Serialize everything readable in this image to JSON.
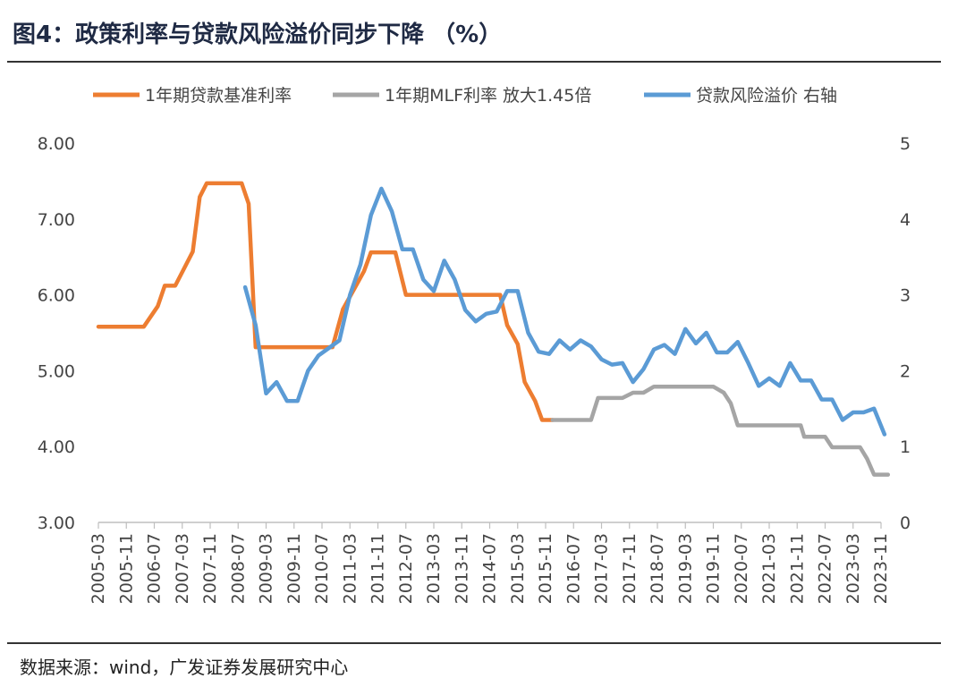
{
  "header": {
    "title": "图4：政策利率与贷款风险溢价同步下降 （%）"
  },
  "footer": {
    "source": "数据来源：wind，广发证券发展研究中心"
  },
  "chart_data": {
    "type": "line",
    "title": "图4：政策利率与贷款风险溢价同步下降 （%）",
    "xlabel": "",
    "ylabel": "",
    "x_tick_labels": [
      "2005-03",
      "2005-11",
      "2006-07",
      "2007-03",
      "2007-11",
      "2008-07",
      "2009-03",
      "2009-11",
      "2010-07",
      "2011-03",
      "2011-11",
      "2012-07",
      "2013-03",
      "2013-11",
      "2014-07",
      "2015-03",
      "2015-11",
      "2016-07",
      "2017-03",
      "2017-11",
      "2018-07",
      "2019-03",
      "2019-11",
      "2020-07",
      "2021-03",
      "2021-11",
      "2022-07",
      "2023-03",
      "2023-11"
    ],
    "y_left": {
      "ticks": [
        "3.00",
        "4.00",
        "5.00",
        "6.00",
        "7.00",
        "8.00"
      ],
      "ylim": [
        3,
        8
      ]
    },
    "y_right": {
      "ticks": [
        "0",
        "1",
        "2",
        "3",
        "4",
        "5"
      ],
      "ylim": [
        0,
        5
      ]
    },
    "legend_position": "top",
    "grid": false,
    "series": [
      {
        "name": "1年期贷款基准利率",
        "axis": "left",
        "color": "#ED7D31",
        "points": [
          [
            "2005-03",
            5.58
          ],
          [
            "2006-04",
            5.58
          ],
          [
            "2006-08",
            5.85
          ],
          [
            "2006-10",
            6.12
          ],
          [
            "2007-01",
            6.12
          ],
          [
            "2007-04",
            6.39
          ],
          [
            "2007-06",
            6.57
          ],
          [
            "2007-08",
            7.29
          ],
          [
            "2007-10",
            7.47
          ],
          [
            "2008-08",
            7.47
          ],
          [
            "2008-10",
            7.2
          ],
          [
            "2008-12",
            5.31
          ],
          [
            "2010-10",
            5.31
          ],
          [
            "2011-01",
            5.81
          ],
          [
            "2011-04",
            6.06
          ],
          [
            "2011-07",
            6.31
          ],
          [
            "2011-09",
            6.56
          ],
          [
            "2012-04",
            6.56
          ],
          [
            "2012-07",
            6.0
          ],
          [
            "2014-10",
            6.0
          ],
          [
            "2014-12",
            5.6
          ],
          [
            "2015-03",
            5.35
          ],
          [
            "2015-05",
            4.85
          ],
          [
            "2015-08",
            4.6
          ],
          [
            "2015-10",
            4.35
          ],
          [
            "2016-01",
            4.35
          ]
        ]
      },
      {
        "name": "1年期MLF利率 放大1.45倍",
        "axis": "left",
        "color": "#A5A5A5",
        "points": [
          [
            "2016-01",
            4.35
          ],
          [
            "2016-12",
            4.35
          ],
          [
            "2017-02",
            4.64
          ],
          [
            "2017-09",
            4.64
          ],
          [
            "2017-12",
            4.71
          ],
          [
            "2018-03",
            4.71
          ],
          [
            "2018-06",
            4.79
          ],
          [
            "2019-11",
            4.79
          ],
          [
            "2020-02",
            4.71
          ],
          [
            "2020-04",
            4.57
          ],
          [
            "2020-06",
            4.28
          ],
          [
            "2021-12",
            4.28
          ],
          [
            "2022-01",
            4.13
          ],
          [
            "2022-07",
            4.13
          ],
          [
            "2022-09",
            3.99
          ],
          [
            "2023-05",
            3.99
          ],
          [
            "2023-07",
            3.84
          ],
          [
            "2023-09",
            3.63
          ],
          [
            "2024-01",
            3.63
          ]
        ]
      },
      {
        "name": "贷款风险溢价 右轴",
        "axis": "right",
        "color": "#5B9BD5",
        "points": [
          [
            "2008-09",
            3.1
          ],
          [
            "2008-12",
            2.6
          ],
          [
            "2009-03",
            1.7
          ],
          [
            "2009-06",
            1.85
          ],
          [
            "2009-09",
            1.6
          ],
          [
            "2009-12",
            1.6
          ],
          [
            "2010-03",
            2.0
          ],
          [
            "2010-06",
            2.2
          ],
          [
            "2010-09",
            2.3
          ],
          [
            "2010-12",
            2.4
          ],
          [
            "2011-03",
            3.0
          ],
          [
            "2011-06",
            3.4
          ],
          [
            "2011-09",
            4.05
          ],
          [
            "2011-12",
            4.4
          ],
          [
            "2012-03",
            4.1
          ],
          [
            "2012-06",
            3.6
          ],
          [
            "2012-09",
            3.6
          ],
          [
            "2012-12",
            3.2
          ],
          [
            "2013-03",
            3.05
          ],
          [
            "2013-06",
            3.45
          ],
          [
            "2013-09",
            3.2
          ],
          [
            "2013-12",
            2.8
          ],
          [
            "2014-03",
            2.65
          ],
          [
            "2014-06",
            2.75
          ],
          [
            "2014-09",
            2.78
          ],
          [
            "2014-12",
            3.05
          ],
          [
            "2015-03",
            3.05
          ],
          [
            "2015-06",
            2.5
          ],
          [
            "2015-09",
            2.25
          ],
          [
            "2015-12",
            2.22
          ],
          [
            "2016-03",
            2.4
          ],
          [
            "2016-06",
            2.28
          ],
          [
            "2016-09",
            2.4
          ],
          [
            "2016-12",
            2.32
          ],
          [
            "2017-03",
            2.15
          ],
          [
            "2017-06",
            2.08
          ],
          [
            "2017-09",
            2.1
          ],
          [
            "2017-12",
            1.85
          ],
          [
            "2018-03",
            2.02
          ],
          [
            "2018-06",
            2.28
          ],
          [
            "2018-09",
            2.34
          ],
          [
            "2018-12",
            2.22
          ],
          [
            "2019-03",
            2.55
          ],
          [
            "2019-06",
            2.36
          ],
          [
            "2019-09",
            2.5
          ],
          [
            "2019-12",
            2.24
          ],
          [
            "2020-03",
            2.24
          ],
          [
            "2020-06",
            2.38
          ],
          [
            "2020-09",
            2.1
          ],
          [
            "2020-12",
            1.8
          ],
          [
            "2021-03",
            1.9
          ],
          [
            "2021-06",
            1.8
          ],
          [
            "2021-09",
            2.1
          ],
          [
            "2021-12",
            1.87
          ],
          [
            "2022-03",
            1.87
          ],
          [
            "2022-06",
            1.62
          ],
          [
            "2022-09",
            1.62
          ],
          [
            "2022-12",
            1.35
          ],
          [
            "2023-03",
            1.45
          ],
          [
            "2023-06",
            1.45
          ],
          [
            "2023-09",
            1.5
          ],
          [
            "2023-12",
            1.16
          ]
        ]
      }
    ]
  }
}
